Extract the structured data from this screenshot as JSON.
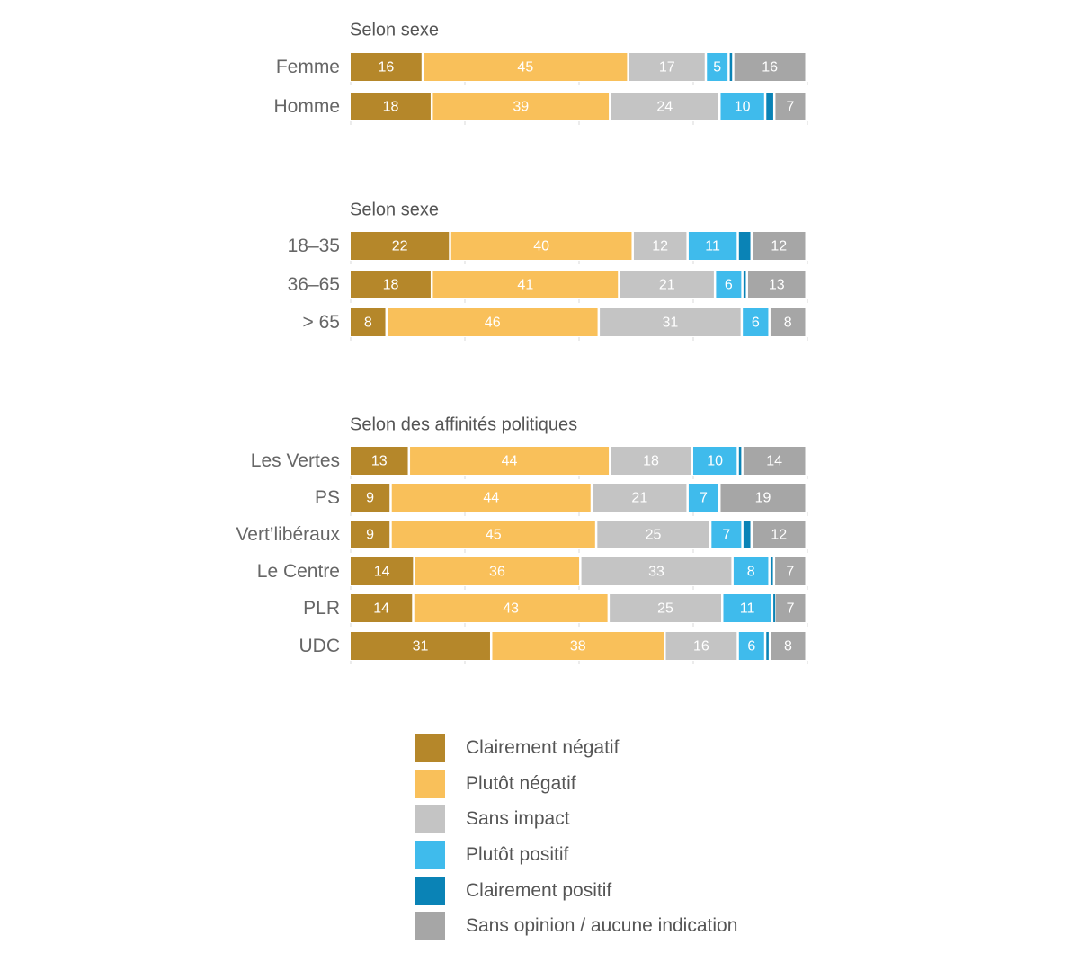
{
  "chart_data": {
    "type": "bar",
    "orientation": "horizontal",
    "stacked": true,
    "xlim": [
      0,
      100
    ],
    "categories": [
      "Clairement négatif",
      "Plutôt négatif",
      "Sans impact",
      "Plutôt positif",
      "Clairement positif",
      "Sans opinion / aucune indication"
    ],
    "colors": [
      "#b5872a",
      "#f9c05a",
      "#c4c4c4",
      "#3fbbec",
      "#0a83b6",
      "#a6a6a6"
    ],
    "groups": [
      {
        "title": "Selon sexe",
        "rows": [
          {
            "label": "Femme",
            "values": [
              16,
              45,
              17,
              5,
              1,
              16
            ],
            "value_labels": [
              "16",
              "45",
              "17",
              "5",
              "",
              "16"
            ]
          },
          {
            "label": "Homme",
            "values": [
              18,
              39,
              24,
              10,
              2,
              7
            ],
            "value_labels": [
              "18",
              "39",
              "24",
              "10",
              "",
              "7"
            ]
          }
        ]
      },
      {
        "title": "Selon sexe",
        "rows": [
          {
            "label": "18–35",
            "values": [
              22,
              40,
              12,
              11,
              3,
              12
            ],
            "value_labels": [
              "22",
              "40",
              "12",
              "11",
              "",
              "12"
            ]
          },
          {
            "label": "36–65",
            "values": [
              18,
              41,
              21,
              6,
              1,
              13
            ],
            "value_labels": [
              "18",
              "41",
              "21",
              "6",
              "",
              "13"
            ]
          },
          {
            "label": "> 65",
            "values": [
              8,
              46,
              31,
              6,
              0,
              8
            ],
            "value_labels": [
              "8",
              "46",
              "31",
              "6",
              "",
              "8"
            ]
          }
        ]
      },
      {
        "title": "Selon des affinités politiques",
        "rows": [
          {
            "label": "Les Vertes",
            "values": [
              13,
              44,
              18,
              10,
              1,
              14
            ],
            "value_labels": [
              "13",
              "44",
              "18",
              "10",
              "",
              "14"
            ]
          },
          {
            "label": "PS",
            "values": [
              9,
              44,
              21,
              7,
              0,
              19
            ],
            "value_labels": [
              "9",
              "44",
              "21",
              "7",
              "",
              "19"
            ]
          },
          {
            "label": "Vert’libéraux",
            "values": [
              9,
              45,
              25,
              7,
              2,
              12
            ],
            "value_labels": [
              "9",
              "45",
              "25",
              "7",
              "",
              "12"
            ]
          },
          {
            "label": "Le Centre",
            "values": [
              14,
              36,
              33,
              8,
              1,
              7
            ],
            "value_labels": [
              "14",
              "36",
              "33",
              "8",
              "",
              "7"
            ]
          },
          {
            "label": "PLR",
            "values": [
              14,
              43,
              25,
              11,
              0.5,
              7
            ],
            "value_labels": [
              "14",
              "43",
              "25",
              "11",
              "",
              "7"
            ]
          },
          {
            "label": "UDC",
            "values": [
              31,
              38,
              16,
              6,
              1,
              8
            ],
            "value_labels": [
              "31",
              "38",
              "16",
              "6",
              "",
              "8"
            ]
          }
        ]
      }
    ]
  }
}
